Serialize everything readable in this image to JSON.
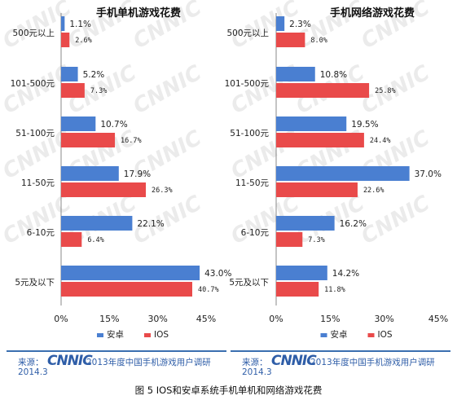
{
  "caption": "图 5 IOS和安卓系统手机单机和网络游戏花费",
  "source": {
    "label": "来源：",
    "logo": "CNNIC",
    "text": "2013年度中国手机游戏用户调研",
    "date": "2014.3"
  },
  "watermark": "CNNIC",
  "colors": {
    "android": "#4a7fd1",
    "ios": "#e94a4a",
    "grid": "#cfcfcf"
  },
  "chart_data": [
    {
      "type": "bar",
      "orientation": "horizontal",
      "title": "手机单机游戏花费",
      "categories": [
        "500元以上",
        "101-500元",
        "51-100元",
        "11-50元",
        "6-10元",
        "5元及以下"
      ],
      "series": [
        {
          "name": "安卓",
          "values": [
            1.1,
            5.2,
            10.7,
            17.9,
            22.1,
            43.0
          ],
          "labels": [
            "1.1%",
            "5.2%",
            "10.7%",
            "17.9%",
            "22.1%",
            "43.0%"
          ]
        },
        {
          "name": "IOS",
          "values": [
            2.6,
            7.3,
            16.7,
            26.3,
            6.4,
            40.7
          ],
          "labels": [
            "2.6%",
            "7.3%",
            "16.7%",
            "26.3%",
            "6.4%",
            "40.7%"
          ]
        }
      ],
      "xlim": [
        0,
        45
      ],
      "ticks": [
        "0%",
        "15%",
        "30%",
        "45%"
      ],
      "legend": "bottom",
      "grid": false
    },
    {
      "type": "bar",
      "orientation": "horizontal",
      "title": "手机网络游戏花费",
      "categories": [
        "500元以上",
        "101-500元",
        "51-100元",
        "11-50元",
        "6-10元",
        "5元及以下"
      ],
      "series": [
        {
          "name": "安卓",
          "values": [
            2.3,
            10.8,
            19.5,
            37.0,
            16.2,
            14.2
          ],
          "labels": [
            "2.3%",
            "10.8%",
            "19.5%",
            "37.0%",
            "16.2%",
            "14.2%"
          ]
        },
        {
          "name": "IOS",
          "values": [
            8.0,
            25.8,
            24.4,
            22.6,
            7.3,
            11.8
          ],
          "labels": [
            "8.0%",
            "25.8%",
            "24.4%",
            "22.6%",
            "7.3%",
            "11.8%"
          ]
        }
      ],
      "xlim": [
        0,
        45
      ],
      "ticks": [
        "0%",
        "15%",
        "30%",
        "45%"
      ],
      "legend": "bottom",
      "grid": false
    }
  ]
}
